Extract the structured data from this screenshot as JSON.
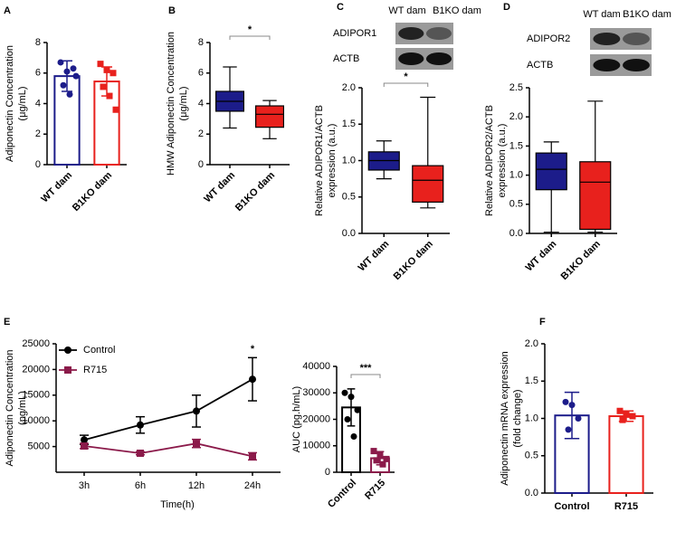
{
  "chart_data": [
    {
      "type": "bar",
      "panel": "A",
      "y_label": [
        "Adiponectin Concentration",
        "(μg/mL)"
      ],
      "categories": [
        "WT dam",
        "B1KO dam"
      ],
      "values": [
        5.8,
        5.45
      ],
      "errors": [
        1.0,
        0.95
      ],
      "colors": [
        "#1c1c8a",
        "#e8211d"
      ],
      "markers": [
        "circle",
        "square"
      ],
      "points": [
        [
          6.7,
          6.1,
          6.3,
          5.2,
          4.6,
          5.8
        ],
        [
          6.6,
          6.2,
          6.0,
          5.1,
          4.5,
          3.6
        ]
      ],
      "ylim": [
        0,
        8
      ],
      "yticks": [
        0,
        2,
        4,
        6,
        8
      ]
    },
    {
      "type": "box",
      "panel": "B",
      "y_label": [
        "HMW Adiponectin Concentration",
        "(μg/mL)"
      ],
      "categories": [
        "WT dam",
        "B1KO dam"
      ],
      "colors": [
        "#1c1c8a",
        "#e8211d"
      ],
      "boxes": [
        {
          "min": 2.4,
          "q1": 3.5,
          "median": 4.15,
          "q3": 4.8,
          "max": 6.4
        },
        {
          "min": 1.7,
          "q1": 2.45,
          "median": 3.3,
          "q3": 3.85,
          "max": 4.2
        }
      ],
      "significance": "*",
      "ylim": [
        0,
        8
      ],
      "yticks": [
        0,
        2,
        4,
        6,
        8
      ]
    },
    {
      "type": "box",
      "panel": "C",
      "y_label": [
        "Relative ADIPOR1/ACTB",
        "expression (a.u.)"
      ],
      "blot": {
        "lanes": [
          "WT dam",
          "B1KO dam"
        ],
        "rows": [
          "ADIPOR1",
          "ACTB"
        ]
      },
      "categories": [
        "WT dam",
        "B1KO dam"
      ],
      "colors": [
        "#1c1c8a",
        "#e8211d"
      ],
      "boxes": [
        {
          "min": 0.75,
          "q1": 0.87,
          "median": 1.0,
          "q3": 1.12,
          "max": 1.27
        },
        {
          "min": 0.35,
          "q1": 0.43,
          "median": 0.73,
          "q3": 0.93,
          "max": 1.87
        }
      ],
      "significance": "*",
      "ylim": [
        0,
        2
      ],
      "yticks": [
        {
          "value": 0,
          "label": "0.0"
        },
        0.5,
        {
          "value": 1,
          "label": "1.0"
        },
        1.5,
        {
          "value": 2,
          "label": "2.0"
        }
      ]
    },
    {
      "type": "box",
      "panel": "D",
      "y_label": [
        "Relative ADIPOR2/ACTB",
        "expression (a.u.)"
      ],
      "blot": {
        "lanes": [
          "WT dam",
          "B1KO dam"
        ],
        "rows": [
          "ADIPOR2",
          "ACTB"
        ]
      },
      "categories": [
        "WT dam",
        "B1KO dam"
      ],
      "colors": [
        "#1c1c8a",
        "#e8211d"
      ],
      "boxes": [
        {
          "min": 0.02,
          "q1": 0.75,
          "median": 1.1,
          "q3": 1.38,
          "max": 1.57
        },
        {
          "min": 0.02,
          "q1": 0.07,
          "median": 0.88,
          "q3": 1.23,
          "max": 2.27
        }
      ],
      "ylim": [
        0,
        2.5
      ],
      "yticks": [
        {
          "value": 0,
          "label": "0.0"
        },
        0.5,
        {
          "value": 1,
          "label": "1.0"
        },
        1.5,
        {
          "value": 2,
          "label": "2.0"
        },
        2.5
      ]
    },
    {
      "type": "line",
      "panel": "E",
      "y_label": [
        "Adiponectin Concentration",
        "(pg/mL)"
      ],
      "x_label": "Time(h)",
      "categories": [
        "3h",
        "6h",
        "12h",
        "24h"
      ],
      "series": [
        {
          "name": "Control",
          "color": "#000000",
          "marker": "circle",
          "values": [
            6300,
            9200,
            11900,
            18100
          ],
          "errors": [
            900,
            1600,
            3100,
            4200
          ]
        },
        {
          "name": "R715",
          "color": "#8b1a4a",
          "marker": "square",
          "values": [
            5100,
            3700,
            5600,
            3100
          ],
          "errors": [
            500,
            300,
            800,
            700
          ]
        }
      ],
      "significance": "*",
      "ylim": [
        0,
        25000
      ],
      "yticks": [
        5000,
        10000,
        15000,
        20000,
        25000
      ]
    },
    {
      "type": "bar",
      "y_label": [
        "AUC (pg.h/mL)"
      ],
      "categories": [
        "Control",
        "R715"
      ],
      "values": [
        24500,
        5300
      ],
      "errors": [
        7000,
        2500
      ],
      "colors": [
        "#000000",
        "#8b1a4a"
      ],
      "markers": [
        "circle",
        "square"
      ],
      "points": [
        [
          30000,
          28500,
          23500,
          20000,
          13500
        ],
        [
          8000,
          6500,
          5000,
          4500,
          3000
        ]
      ],
      "significance": "***",
      "ylim": [
        0,
        40000
      ],
      "yticks": [
        0,
        10000,
        20000,
        30000,
        40000
      ]
    },
    {
      "type": "bar",
      "panel": "F",
      "y_label": [
        "Adiponectin mRNA expression",
        "(fold change)"
      ],
      "categories": [
        "Control",
        "R715"
      ],
      "values": [
        1.04,
        1.03
      ],
      "errors": [
        0.31,
        0.07
      ],
      "colors": [
        "#1c1c8a",
        "#e8211d"
      ],
      "markers": [
        "circle",
        "square"
      ],
      "points": [
        [
          1.22,
          1.18,
          1.0,
          0.85
        ],
        [
          1.1,
          1.05,
          1.03,
          0.98
        ]
      ],
      "ylim": [
        0,
        2
      ],
      "yticks": [
        {
          "value": 0,
          "label": "0.0"
        },
        0.5,
        {
          "value": 1,
          "label": "1.0"
        },
        1.5,
        {
          "value": 2,
          "label": "2.0"
        }
      ]
    }
  ]
}
